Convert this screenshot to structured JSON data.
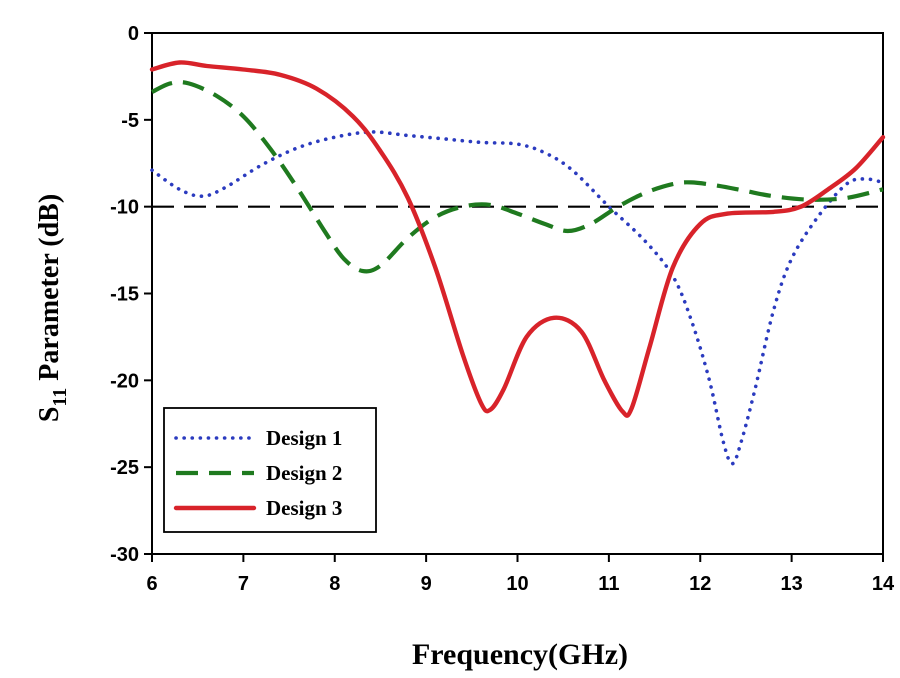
{
  "chart_data": {
    "type": "line",
    "title": "",
    "xlabel": "Frequency(GHz)",
    "ylabel": {
      "prefix": "S",
      "subscript": "11",
      "suffix": " Parameter (dB)"
    },
    "xlim": [
      6,
      14
    ],
    "ylim": [
      -30,
      0
    ],
    "xticks": [
      6,
      7,
      8,
      9,
      10,
      11,
      12,
      13,
      14
    ],
    "yticks": [
      0,
      -5,
      -10,
      -15,
      -20,
      -25,
      -30
    ],
    "grid": false,
    "legend_position": "bottom-left",
    "reference_line": {
      "y": -10,
      "style": "dashed",
      "color": "#000000"
    },
    "series": [
      {
        "name": "Design 1",
        "style": "dotted",
        "color": "#2b3bbf",
        "points": [
          [
            6.0,
            -7.9
          ],
          [
            6.3,
            -9.0
          ],
          [
            6.55,
            -9.4
          ],
          [
            6.8,
            -8.9
          ],
          [
            7.2,
            -7.6
          ],
          [
            7.6,
            -6.6
          ],
          [
            8.0,
            -6.0
          ],
          [
            8.4,
            -5.7
          ],
          [
            8.8,
            -5.9
          ],
          [
            9.2,
            -6.1
          ],
          [
            9.6,
            -6.3
          ],
          [
            10.0,
            -6.4
          ],
          [
            10.3,
            -6.9
          ],
          [
            10.6,
            -7.9
          ],
          [
            11.0,
            -10.0
          ],
          [
            11.4,
            -12.0
          ],
          [
            11.7,
            -14.0
          ],
          [
            11.9,
            -16.5
          ],
          [
            12.1,
            -20.0
          ],
          [
            12.25,
            -23.5
          ],
          [
            12.35,
            -24.8
          ],
          [
            12.45,
            -23.5
          ],
          [
            12.6,
            -20.5
          ],
          [
            12.8,
            -16.0
          ],
          [
            13.0,
            -13.0
          ],
          [
            13.3,
            -10.5
          ],
          [
            13.6,
            -8.7
          ],
          [
            13.8,
            -8.4
          ],
          [
            14.0,
            -8.6
          ]
        ]
      },
      {
        "name": "Design 2",
        "style": "dashed",
        "color": "#1f7a1f",
        "points": [
          [
            6.0,
            -3.4
          ],
          [
            6.2,
            -2.9
          ],
          [
            6.4,
            -2.9
          ],
          [
            6.7,
            -3.6
          ],
          [
            7.0,
            -4.8
          ],
          [
            7.3,
            -6.7
          ],
          [
            7.6,
            -9.0
          ],
          [
            7.9,
            -11.5
          ],
          [
            8.1,
            -13.0
          ],
          [
            8.3,
            -13.7
          ],
          [
            8.5,
            -13.4
          ],
          [
            8.8,
            -11.8
          ],
          [
            9.1,
            -10.6
          ],
          [
            9.4,
            -10.0
          ],
          [
            9.7,
            -9.9
          ],
          [
            10.0,
            -10.4
          ],
          [
            10.3,
            -11.0
          ],
          [
            10.55,
            -11.4
          ],
          [
            10.8,
            -11.0
          ],
          [
            11.1,
            -10.0
          ],
          [
            11.4,
            -9.2
          ],
          [
            11.7,
            -8.7
          ],
          [
            11.9,
            -8.6
          ],
          [
            12.2,
            -8.8
          ],
          [
            12.5,
            -9.1
          ],
          [
            12.8,
            -9.4
          ],
          [
            13.2,
            -9.6
          ],
          [
            13.6,
            -9.5
          ],
          [
            14.0,
            -9.0
          ]
        ]
      },
      {
        "name": "Design 3",
        "style": "solid",
        "color": "#d8232a",
        "points": [
          [
            6.0,
            -2.1
          ],
          [
            6.3,
            -1.7
          ],
          [
            6.6,
            -1.9
          ],
          [
            7.0,
            -2.1
          ],
          [
            7.4,
            -2.4
          ],
          [
            7.8,
            -3.2
          ],
          [
            8.2,
            -4.8
          ],
          [
            8.5,
            -6.8
          ],
          [
            8.8,
            -9.5
          ],
          [
            9.1,
            -13.5
          ],
          [
            9.4,
            -18.5
          ],
          [
            9.6,
            -21.3
          ],
          [
            9.7,
            -21.7
          ],
          [
            9.85,
            -20.5
          ],
          [
            10.1,
            -17.5
          ],
          [
            10.4,
            -16.4
          ],
          [
            10.7,
            -17.2
          ],
          [
            10.95,
            -20.0
          ],
          [
            11.15,
            -21.8
          ],
          [
            11.25,
            -21.6
          ],
          [
            11.45,
            -18.0
          ],
          [
            11.7,
            -13.5
          ],
          [
            12.0,
            -11.0
          ],
          [
            12.3,
            -10.4
          ],
          [
            12.8,
            -10.3
          ],
          [
            13.1,
            -10.0
          ],
          [
            13.4,
            -9.0
          ],
          [
            13.7,
            -7.8
          ],
          [
            14.0,
            -6.0
          ]
        ]
      }
    ]
  }
}
